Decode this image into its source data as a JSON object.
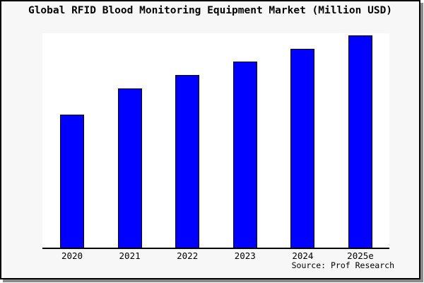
{
  "title": "Global RFID Blood Monitoring Equipment Market (Million USD)",
  "source_note": "Source: Prof Research",
  "colors": {
    "bar_fill": "#0000ff",
    "bar_border": "#000000",
    "canvas_background": "#f7f7f7",
    "plot_background": "#ffffff",
    "frame_border": "#000000",
    "frame_shadow": "#8a8a8a",
    "text": "#000000"
  },
  "chart_data": {
    "type": "bar",
    "title": "Global RFID Blood Monitoring Equipment Market (Million USD)",
    "categories": [
      "2020",
      "2021",
      "2022",
      "2023",
      "2024",
      "2025e"
    ],
    "values": [
      62.7,
      75.0,
      81.3,
      87.7,
      93.7,
      100.0
    ],
    "values_note": "relative heights, max bar (2025e) normalized to 100; no y-axis scale shown in image",
    "xlabel": "",
    "ylabel": "",
    "ylim": [
      0,
      101
    ],
    "grid": false,
    "legend": false,
    "y_axis_visible": false,
    "x_axis_line": true,
    "source_note": "Source: Prof Research"
  }
}
